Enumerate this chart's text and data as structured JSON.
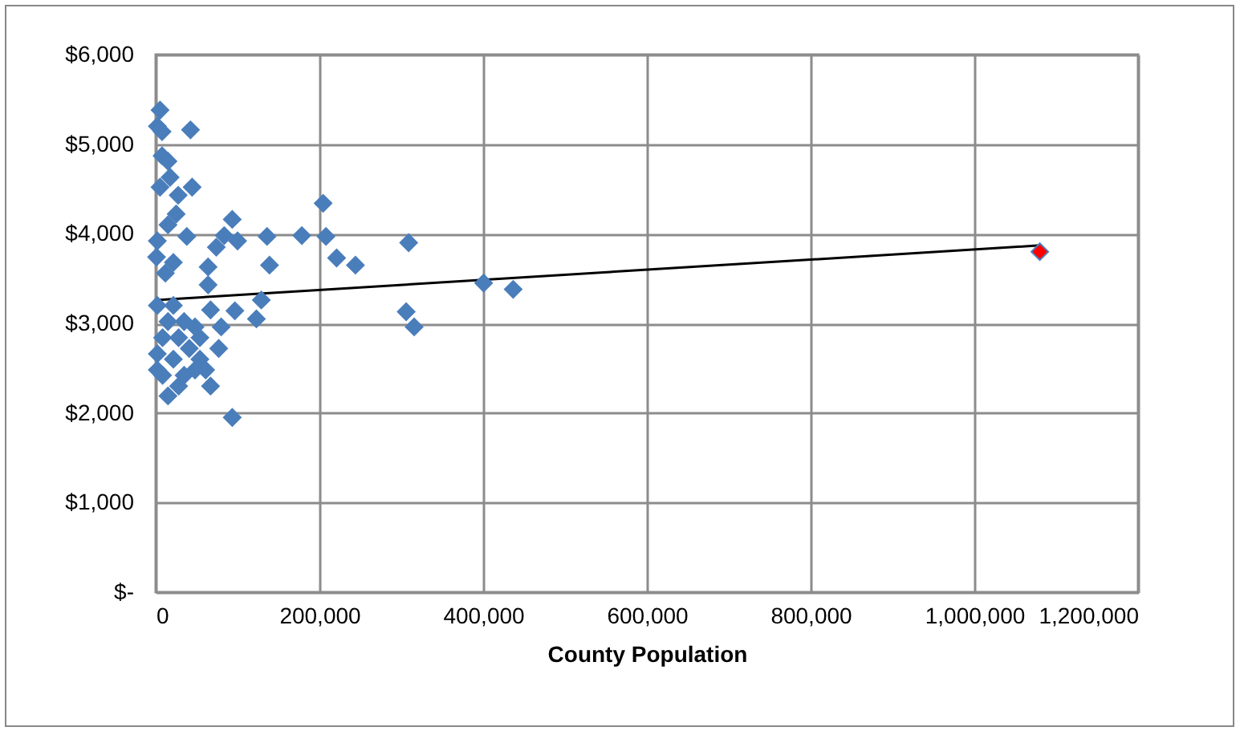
{
  "chart_data": {
    "type": "scatter",
    "xlabel": "County Population",
    "grid": true,
    "xlim": [
      0,
      1200000
    ],
    "ylim": [
      0,
      6000
    ],
    "xticks": [
      0,
      {
        "value": 200000,
        "label": "200,000"
      },
      {
        "value": 400000,
        "label": "400,000"
      },
      {
        "value": 600000,
        "label": "600,000"
      },
      {
        "value": 800000,
        "label": "800,000"
      },
      {
        "value": 1000000,
        "label": "1,000,000"
      },
      {
        "value": 1200000,
        "label": "1,200,000"
      }
    ],
    "yticks": [
      {
        "value": 0,
        "label": "$-"
      },
      {
        "value": 1000,
        "label": "$1,000"
      },
      {
        "value": 2000,
        "label": "$2,000"
      },
      {
        "value": 3000,
        "label": "$3,000"
      },
      {
        "value": 4000,
        "label": "$4,000"
      },
      {
        "value": 5000,
        "label": "$5,000"
      },
      {
        "value": 6000,
        "label": "$6,000"
      }
    ],
    "series": [
      {
        "color": "#4a7ebb",
        "marker": "diamond",
        "x": [
          5300,
          2000,
          42500,
          7800,
          7800,
          15000,
          5300,
          17600,
          44500,
          27500,
          25000,
          15000,
          204500,
          93500,
          136000,
          178500,
          208000,
          83700,
          74000,
          100000,
          38000,
          2000,
          1000,
          21600,
          11800,
          64000,
          64000,
          139000,
          221000,
          244000,
          67000,
          96700,
          129000,
          123000,
          2000,
          15000,
          28000,
          48000,
          80000,
          77000,
          2000,
          21600,
          54000,
          8400,
          34700,
          67000,
          61000,
          15000,
          93500,
          21600,
          41000,
          8400,
          34700,
          54000,
          28000,
          2000,
          48000,
          309000,
          400600,
          436700,
          306000,
          315700
        ],
        "values": [
          5380,
          5200,
          5160,
          5140,
          4870,
          4810,
          4520,
          4630,
          4520,
          4430,
          4220,
          4100,
          4340,
          4160,
          3970,
          3980,
          3970,
          3980,
          3850,
          3920,
          3970,
          3920,
          3740,
          3680,
          3560,
          3630,
          3430,
          3650,
          3730,
          3650,
          3150,
          3140,
          3260,
          3050,
          3200,
          3020,
          2840,
          2960,
          2960,
          2720,
          2660,
          2600,
          2600,
          2420,
          2420,
          2300,
          2480,
          2190,
          1950,
          3200,
          2720,
          2840,
          3020,
          2840,
          2300,
          2480,
          2480,
          3900,
          3450,
          3380,
          3130,
          2960
        ]
      },
      {
        "color": "#ff0000",
        "marker": "diamond",
        "x": [
          1080000
        ],
        "values": [
          3800
        ]
      },
      {
        "type": "line",
        "marker": "none",
        "color": "#000000",
        "x": [
          0,
          1080000
        ],
        "values": [
          3260,
          3870
        ]
      }
    ]
  }
}
